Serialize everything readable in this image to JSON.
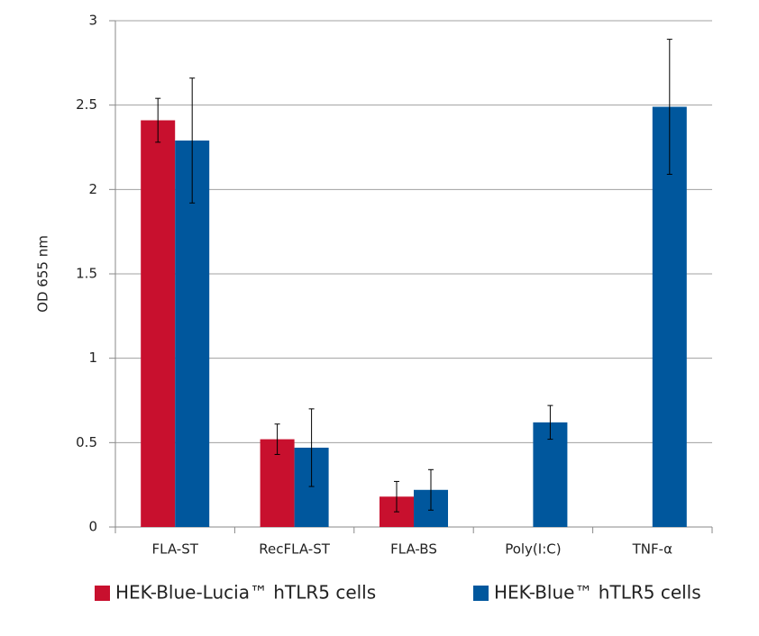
{
  "chart_data": {
    "type": "bar",
    "y_label": "OD 655 nm",
    "categories": [
      "FLA-ST",
      "RecFLA-ST",
      "FLA-BS",
      "Poly(I:C)",
      "TNF-α"
    ],
    "series": [
      {
        "name": "HEK-Blue-Lucia™ hTLR5 cells",
        "color": "#c8102e",
        "values": [
          2.41,
          0.52,
          0.18,
          null,
          null
        ],
        "errors": [
          0.13,
          0.09,
          0.09,
          null,
          null
        ]
      },
      {
        "name": "HEK-Blue™ hTLR5 cells",
        "color": "#00579d",
        "values": [
          2.29,
          0.47,
          0.22,
          0.62,
          2.49
        ],
        "errors": [
          0.37,
          0.23,
          0.12,
          0.1,
          0.4
        ]
      }
    ],
    "ylim": [
      0,
      3
    ],
    "yticks": [
      0,
      0.5,
      1,
      1.5,
      2,
      2.5,
      3
    ],
    "grid": true
  }
}
